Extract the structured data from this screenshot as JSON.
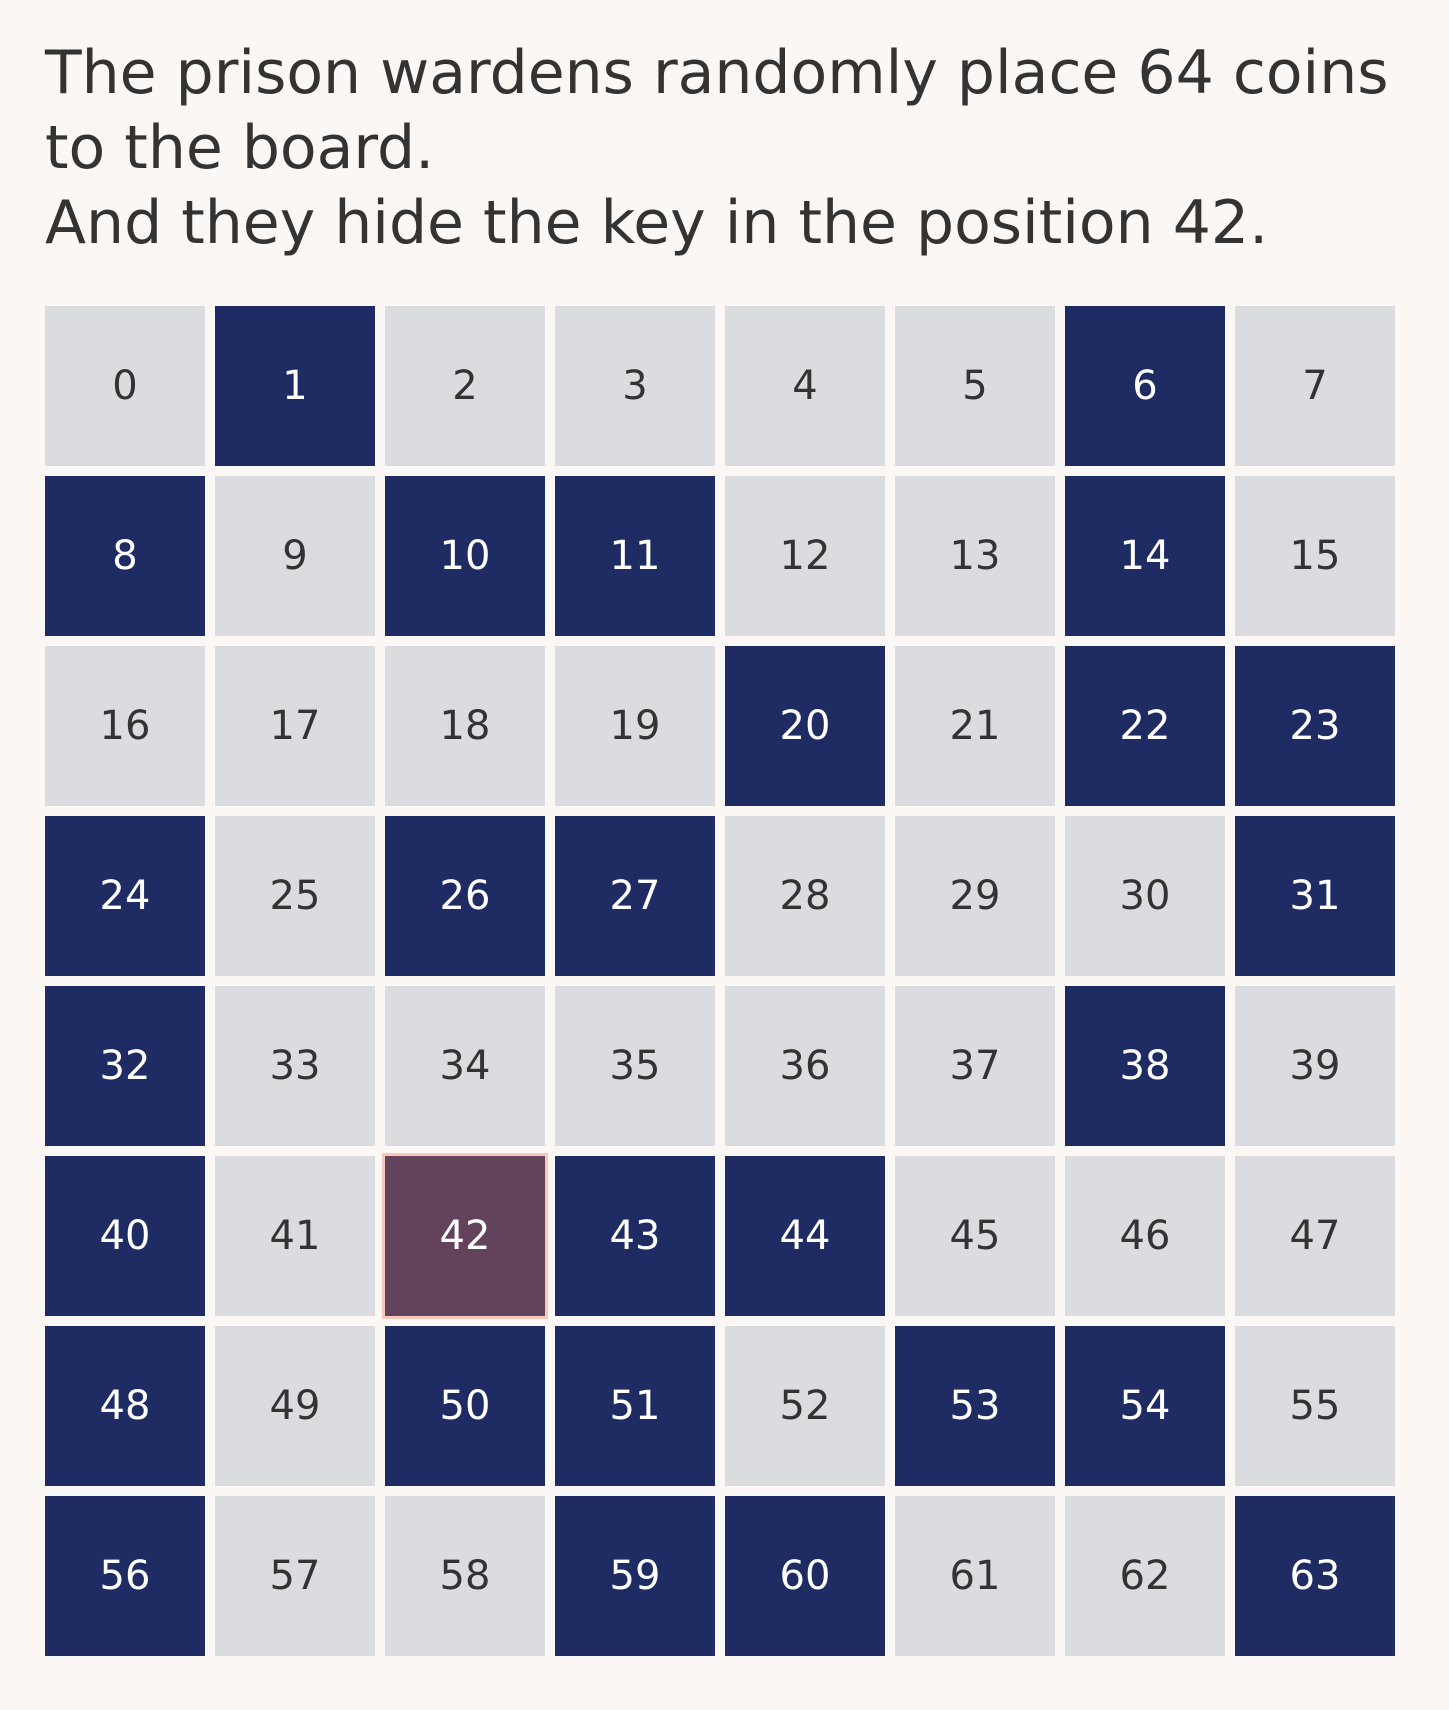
{
  "caption": {
    "line1": "The prison wardens randomly place 64 coins",
    "line2": "to the board.",
    "line3": "And they hide the key in the position 42."
  },
  "board": {
    "key_position": 42,
    "colors": {
      "coin": "#1f2b63",
      "empty": "#dadcdf",
      "key": "#63435c",
      "key_border": "#f7c9bd"
    },
    "cells": [
      {
        "label": "0",
        "state": "empty"
      },
      {
        "label": "1",
        "state": "coin"
      },
      {
        "label": "2",
        "state": "empty"
      },
      {
        "label": "3",
        "state": "empty"
      },
      {
        "label": "4",
        "state": "empty"
      },
      {
        "label": "5",
        "state": "empty"
      },
      {
        "label": "6",
        "state": "coin"
      },
      {
        "label": "7",
        "state": "empty"
      },
      {
        "label": "8",
        "state": "coin"
      },
      {
        "label": "9",
        "state": "empty"
      },
      {
        "label": "10",
        "state": "coin"
      },
      {
        "label": "11",
        "state": "coin"
      },
      {
        "label": "12",
        "state": "empty"
      },
      {
        "label": "13",
        "state": "empty"
      },
      {
        "label": "14",
        "state": "coin"
      },
      {
        "label": "15",
        "state": "empty"
      },
      {
        "label": "16",
        "state": "empty"
      },
      {
        "label": "17",
        "state": "empty"
      },
      {
        "label": "18",
        "state": "empty"
      },
      {
        "label": "19",
        "state": "empty"
      },
      {
        "label": "20",
        "state": "coin"
      },
      {
        "label": "21",
        "state": "empty"
      },
      {
        "label": "22",
        "state": "coin"
      },
      {
        "label": "23",
        "state": "coin"
      },
      {
        "label": "24",
        "state": "coin"
      },
      {
        "label": "25",
        "state": "empty"
      },
      {
        "label": "26",
        "state": "coin"
      },
      {
        "label": "27",
        "state": "coin"
      },
      {
        "label": "28",
        "state": "empty"
      },
      {
        "label": "29",
        "state": "empty"
      },
      {
        "label": "30",
        "state": "empty"
      },
      {
        "label": "31",
        "state": "coin"
      },
      {
        "label": "32",
        "state": "coin"
      },
      {
        "label": "33",
        "state": "empty"
      },
      {
        "label": "34",
        "state": "empty"
      },
      {
        "label": "35",
        "state": "empty"
      },
      {
        "label": "36",
        "state": "empty"
      },
      {
        "label": "37",
        "state": "empty"
      },
      {
        "label": "38",
        "state": "coin"
      },
      {
        "label": "39",
        "state": "empty"
      },
      {
        "label": "40",
        "state": "coin"
      },
      {
        "label": "41",
        "state": "empty"
      },
      {
        "label": "42",
        "state": "key"
      },
      {
        "label": "43",
        "state": "coin"
      },
      {
        "label": "44",
        "state": "coin"
      },
      {
        "label": "45",
        "state": "empty"
      },
      {
        "label": "46",
        "state": "empty"
      },
      {
        "label": "47",
        "state": "empty"
      },
      {
        "label": "48",
        "state": "coin"
      },
      {
        "label": "49",
        "state": "empty"
      },
      {
        "label": "50",
        "state": "coin"
      },
      {
        "label": "51",
        "state": "coin"
      },
      {
        "label": "52",
        "state": "empty"
      },
      {
        "label": "53",
        "state": "coin"
      },
      {
        "label": "54",
        "state": "coin"
      },
      {
        "label": "55",
        "state": "empty"
      },
      {
        "label": "56",
        "state": "coin"
      },
      {
        "label": "57",
        "state": "empty"
      },
      {
        "label": "58",
        "state": "empty"
      },
      {
        "label": "59",
        "state": "coin"
      },
      {
        "label": "60",
        "state": "coin"
      },
      {
        "label": "61",
        "state": "empty"
      },
      {
        "label": "62",
        "state": "empty"
      },
      {
        "label": "63",
        "state": "coin"
      }
    ]
  }
}
